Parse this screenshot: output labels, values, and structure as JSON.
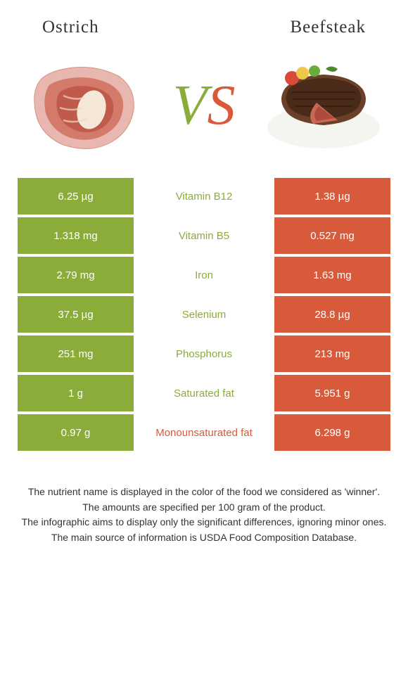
{
  "header": {
    "left_title": "Ostrich",
    "right_title": "Beefsteak"
  },
  "vs": {
    "v": "V",
    "s": "S"
  },
  "colors": {
    "left_cell": "#8aad3a",
    "right_cell": "#d85a3a",
    "left_text": "#8aad3a",
    "right_text": "#d85a3a"
  },
  "rows": [
    {
      "left": "6.25 µg",
      "center": "Vitamin B12",
      "right": "1.38 µg",
      "winner": "left"
    },
    {
      "left": "1.318 mg",
      "center": "Vitamin B5",
      "right": "0.527 mg",
      "winner": "left"
    },
    {
      "left": "2.79 mg",
      "center": "Iron",
      "right": "1.63 mg",
      "winner": "left"
    },
    {
      "left": "37.5 µg",
      "center": "Selenium",
      "right": "28.8 µg",
      "winner": "left"
    },
    {
      "left": "251 mg",
      "center": "Phosphorus",
      "right": "213 mg",
      "winner": "left"
    },
    {
      "left": "1 g",
      "center": "Saturated fat",
      "right": "5.951 g",
      "winner": "left"
    },
    {
      "left": "0.97 g",
      "center": "Monounsaturated fat",
      "right": "6.298 g",
      "winner": "right"
    }
  ],
  "footer": {
    "line1": "The nutrient name is displayed in the color of the food we considered as 'winner'.",
    "line2": "The amounts are specified per 100 gram of the product.",
    "line3": "The infographic aims to display only the significant differences, ignoring minor ones.",
    "line4": "The main source of information is USDA Food Composition Database."
  }
}
